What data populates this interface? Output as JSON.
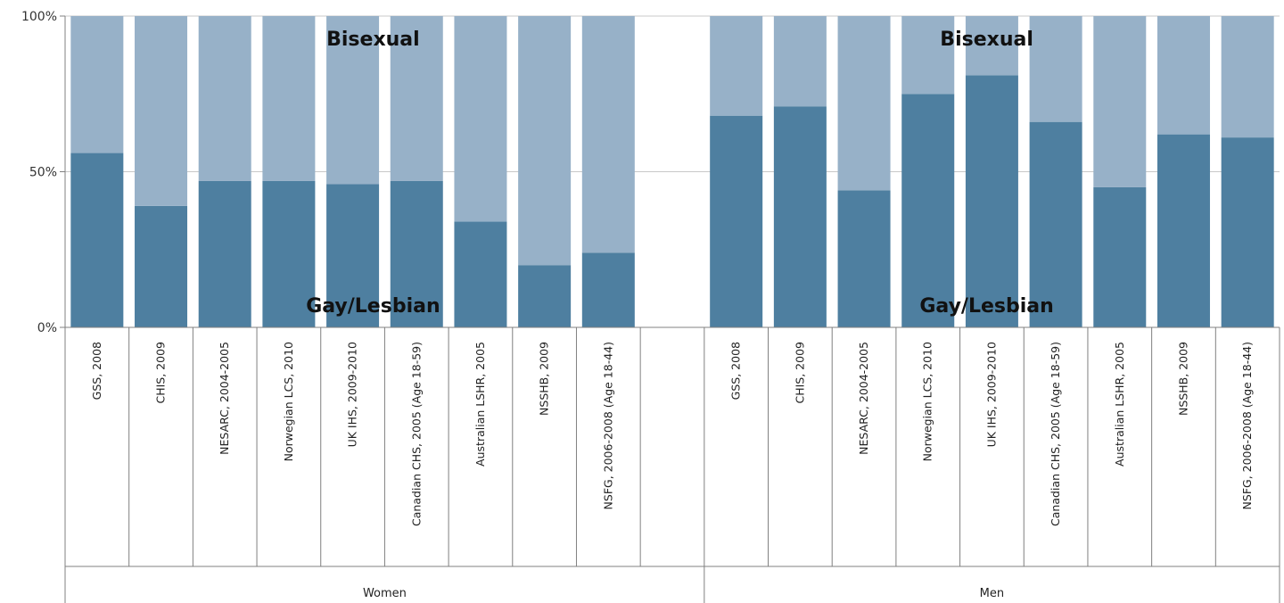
{
  "chart_data": {
    "type": "bar",
    "stacked": true,
    "normalized": true,
    "groups": [
      {
        "name": "Women",
        "categories": [
          "GSS, 2008",
          "CHIS, 2009",
          "NESARC, 2004-2005",
          "Norwegian LCS, 2010",
          "UK IHS, 2009-2010",
          "Canadian CHS, 2005 (Age 18-59)",
          "Australian LSHR, 2005",
          "NSSHB, 2009",
          "NSFG, 2006-2008 (Age 18-44)"
        ],
        "series": [
          {
            "name": "Gay/Lesbian",
            "values": [
              56,
              39,
              47,
              47,
              46,
              47,
              34,
              20,
              24
            ]
          },
          {
            "name": "Bisexual",
            "values": [
              44,
              61,
              53,
              53,
              54,
              53,
              66,
              80,
              76
            ]
          }
        ]
      },
      {
        "name": "Men",
        "categories": [
          "GSS, 2008",
          "CHIS, 2009",
          "NESARC, 2004-2005",
          "Norwegian LCS, 2010",
          "UK IHS, 2009-2010",
          "Canadian CHS, 2005 (Age 18-59)",
          "Australian LSHR, 2005",
          "NSSHB, 2009",
          "NSFG, 2006-2008 (Age 18-44)"
        ],
        "series": [
          {
            "name": "Gay/Lesbian",
            "values": [
              68,
              71,
              44,
              75,
              81,
              66,
              45,
              62,
              61
            ]
          },
          {
            "name": "Bisexual",
            "values": [
              32,
              29,
              56,
              25,
              19,
              34,
              55,
              38,
              39
            ]
          }
        ]
      }
    ],
    "y_ticks": [
      "0%",
      "50%",
      "100%"
    ],
    "ylim": [
      0,
      100
    ],
    "series_labels": [
      "Bisexual",
      "Gay/Lesbian"
    ],
    "colors": {
      "Gay/Lesbian": "#4e7fa0",
      "Bisexual": "#97b1c8"
    },
    "grid": true,
    "legend": "none"
  }
}
